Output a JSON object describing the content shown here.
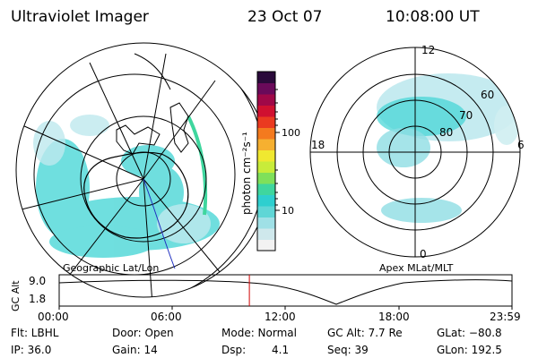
{
  "header": {
    "instrument": "Ultraviolet Imager",
    "date": "23 Oct 07",
    "time": "10:08:00 UT"
  },
  "left_panel": {
    "caption": "Geographic Lat/Lon"
  },
  "right_panel": {
    "caption": "Apex MLat/MLT",
    "mlt_labels": {
      "top": "12",
      "right": "6",
      "bottom": "0",
      "left": "18"
    },
    "mlat_labels": [
      "60",
      "70",
      "80"
    ]
  },
  "colorbar": {
    "unit_label": "photon cm⁻²s⁻¹",
    "ticks": [
      "100",
      "10"
    ],
    "scale": "log",
    "colors": [
      "#f2f2f2",
      "#cfe8ec",
      "#9fe0e6",
      "#5fd6d6",
      "#2ecfcf",
      "#3fd69e",
      "#7fe05a",
      "#c8ec3a",
      "#f0e830",
      "#f6b030",
      "#f47a1e",
      "#ea3a20",
      "#d01030",
      "#a00848",
      "#6a0a5a",
      "#2a0a3a"
    ]
  },
  "timeline": {
    "ylabel": "GC Alt",
    "y_ticks": [
      "9.0",
      "1.8"
    ],
    "x_ticks": [
      "00:00",
      "06:00",
      "12:00",
      "18:00",
      "23:59"
    ],
    "current_time_fraction": 0.42,
    "marker_color": "#d00000"
  },
  "footer": {
    "filter": "Flt: LBHL",
    "ip": "IP: 36.0",
    "door": "Door: Open",
    "gain": "Gain: 14",
    "mode": "Mode: Normal",
    "dsp_label": "Dsp:",
    "dsp_value": "4.1",
    "gc_alt": "GC Alt: 7.7 Re",
    "seq": "Seq: 39",
    "glat": "GLat: −80.8",
    "glon": "GLon: 192.5"
  }
}
